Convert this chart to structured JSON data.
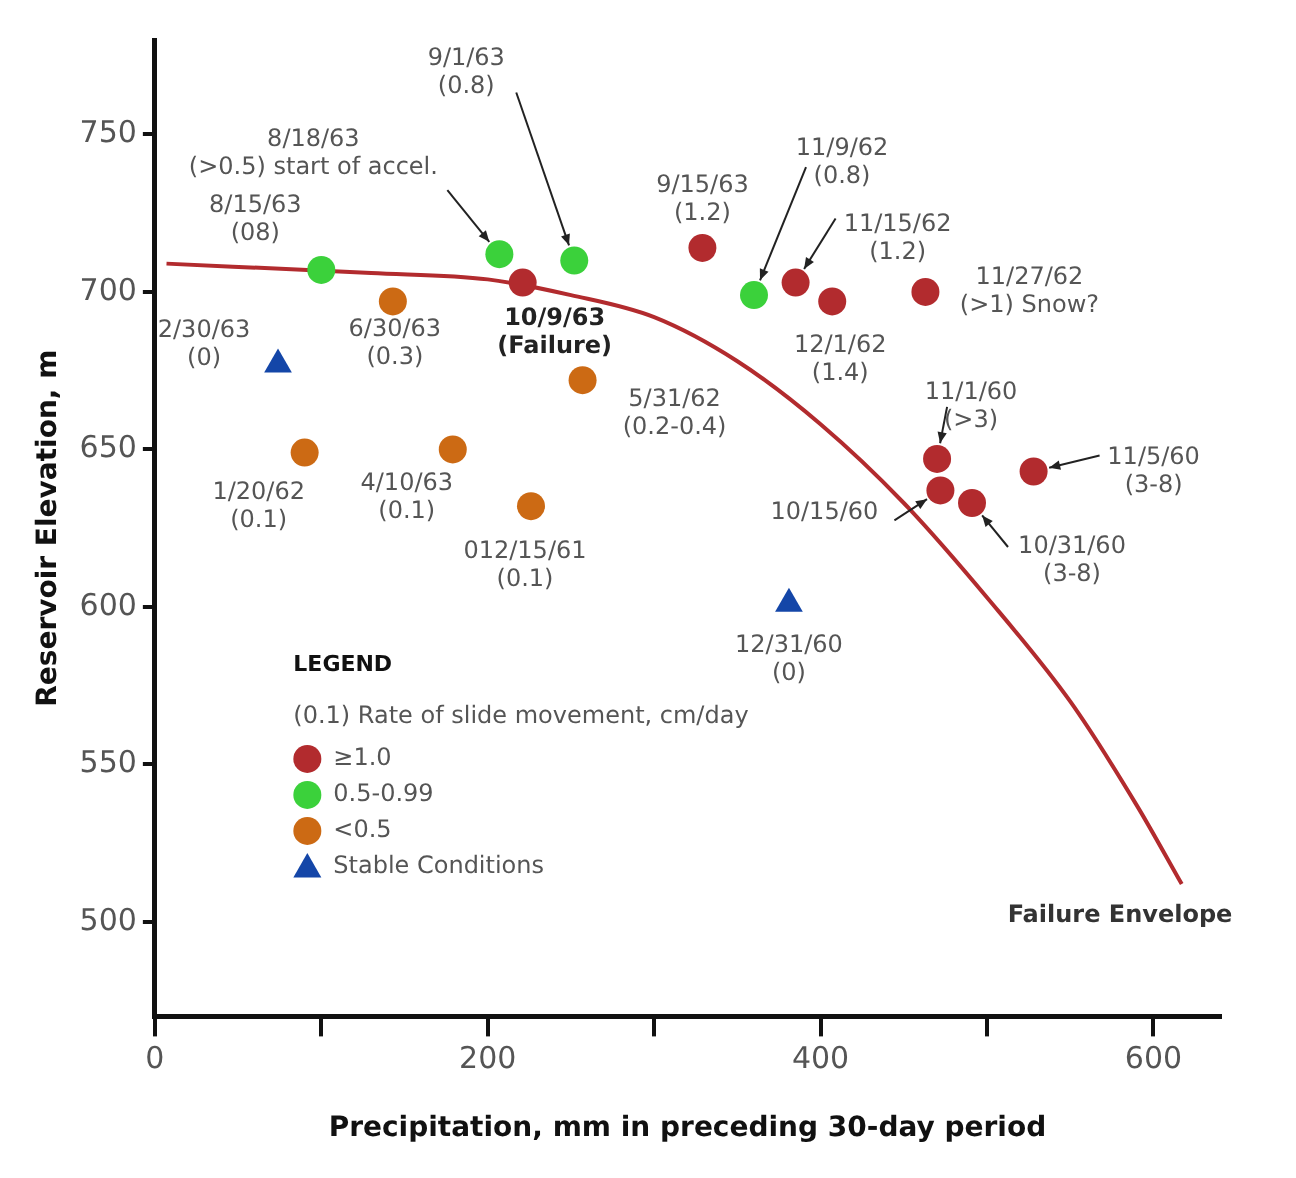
{
  "chart_data": {
    "type": "scatter",
    "xlabel": "Precipitation, mm in preceding 30-day period",
    "ylabel": "Reservoir Elevation, m",
    "xlim": [
      0,
      640
    ],
    "xticks": [
      0,
      {
        "value": 100,
        "label": null
      },
      200,
      {
        "value": 300,
        "label": null
      },
      400,
      {
        "value": 500,
        "label": null
      },
      600
    ],
    "ylim": [
      470,
      780
    ],
    "yticks": [
      500,
      550,
      600,
      650,
      700,
      750
    ],
    "grid": false,
    "legend": "bottom left",
    "legend_title": "LEGEND",
    "series": [
      {
        "name": "≥1.0",
        "color": "#b22b2e",
        "marker": "circle",
        "x": [
          221,
          329,
          385,
          407,
          463,
          470,
          472,
          491,
          528
        ],
        "values": [
          703,
          714,
          703,
          697,
          700,
          647,
          637,
          633,
          643
        ]
      },
      {
        "name": "0.5-0.99",
        "color": "#3bd13b",
        "marker": "circle",
        "x": [
          100,
          207,
          252,
          360
        ],
        "values": [
          707,
          712,
          710,
          699
        ]
      },
      {
        "name": "<0.5",
        "color": "#cc6a14",
        "marker": "circle",
        "x": [
          143,
          257,
          90,
          179,
          226
        ],
        "values": [
          697,
          672,
          649,
          650,
          632
        ]
      },
      {
        "name": "Stable Conditions",
        "color": "#1446a8",
        "marker": "triangle",
        "x": [
          74,
          381
        ],
        "values": [
          677,
          601
        ]
      },
      {
        "name": "Failure Envelope",
        "type": "line",
        "color": "#b22b2e",
        "marker": "none",
        "x": [
          7,
          130,
          200,
          250,
          300,
          350,
          400,
          450,
          500,
          550,
          590,
          617
        ],
        "values": [
          709,
          706,
          704,
          699,
          692,
          678,
          658,
          633,
          603,
          570,
          537,
          512
        ]
      }
    ],
    "annotations": [
      {
        "text": "8/15/63\n(08)",
        "x": 100,
        "y": 707
      },
      {
        "text": "8/18/63\n(>0.5) start of accel.",
        "x": 207,
        "y": 712
      },
      {
        "text": "9/1/63\n(0.8)",
        "x": 252,
        "y": 710
      },
      {
        "text": "10/9/63\n(Failure)",
        "x": 221,
        "y": 703
      },
      {
        "text": "6/30/63\n(0.3)",
        "x": 143,
        "y": 697
      },
      {
        "text": "5/31/62\n(0.2-0.4)",
        "x": 257,
        "y": 672
      },
      {
        "text": "2/30/63\n(0)",
        "x": 74,
        "y": 677
      },
      {
        "text": "1/20/62\n(0.1)",
        "x": 90,
        "y": 649
      },
      {
        "text": "4/10/63\n(0.1)",
        "x": 179,
        "y": 650
      },
      {
        "text": "012/15/61\n(0.1)",
        "x": 226,
        "y": 632
      },
      {
        "text": "9/15/63\n(1.2)",
        "x": 329,
        "y": 714
      },
      {
        "text": "11/9/62\n(0.8)",
        "x": 360,
        "y": 699
      },
      {
        "text": "11/15/62\n(1.2)",
        "x": 385,
        "y": 703
      },
      {
        "text": "12/1/62\n(1.4)",
        "x": 407,
        "y": 697
      },
      {
        "text": "11/27/62\n(>1) Snow?",
        "x": 463,
        "y": 700
      },
      {
        "text": "11/1/60\n(>3)",
        "x": 470,
        "y": 647
      },
      {
        "text": "11/5/60\n(3-8)",
        "x": 528,
        "y": 643
      },
      {
        "text": "10/15/60",
        "x": 472,
        "y": 637
      },
      {
        "text": "10/31/60\n(3-8)",
        "x": 491,
        "y": 633
      },
      {
        "text": "12/31/60\n(0)",
        "x": 381,
        "y": 601
      },
      "(0.1) Rate of slide movement, cm/day"
    ]
  }
}
